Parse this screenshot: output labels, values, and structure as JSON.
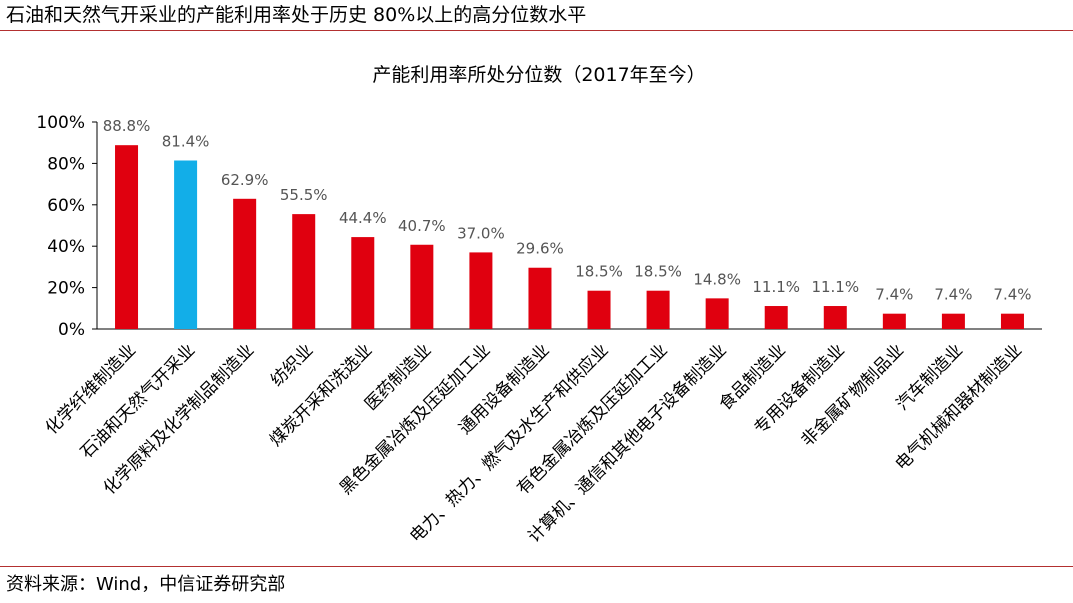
{
  "header": {
    "title": "石油和天然气开采业的产能利用率处于历史 80%以上的高分位数水平"
  },
  "footer": {
    "source": "资料来源：Wind，中信证券研究部"
  },
  "colors": {
    "default_bar": "#e0000f",
    "highlight_bar": "#12aee8",
    "rule": "#b33030",
    "axis": "#000000",
    "value_label": "#555555"
  },
  "chart_data": {
    "type": "bar",
    "title": "产能利用率所处分位数（2017年至今）",
    "xlabel": "",
    "ylabel": "",
    "ylim": [
      0,
      100
    ],
    "yticks": [
      "0%",
      "20%",
      "40%",
      "60%",
      "80%",
      "100%"
    ],
    "yticks_values": [
      0,
      20,
      40,
      60,
      80,
      100
    ],
    "grid": false,
    "legend": "none",
    "highlight_index": 1,
    "categories": [
      "化学纤维制造业",
      "石油和天然气开采业",
      "化学原料及化学制品制造业",
      "纺织业",
      "煤炭开采和洗选业",
      "医药制造业",
      "黑色金属冶炼及压延加工业",
      "通用设备制造业",
      "电力、热力、燃气及水生产和供应业",
      "有色金属冶炼及压延加工业",
      "计算机、通信和其他电子设备制造业",
      "食品制造业",
      "专用设备制造业",
      "非金属矿物制品业",
      "汽车制造业",
      "电气机械和器材制造业"
    ],
    "values": [
      88.8,
      81.4,
      62.9,
      55.5,
      44.4,
      40.7,
      37.0,
      29.6,
      18.5,
      18.5,
      14.8,
      11.1,
      11.1,
      7.4,
      7.4,
      7.4
    ],
    "value_labels": [
      "88.8%",
      "81.4%",
      "62.9%",
      "55.5%",
      "44.4%",
      "40.7%",
      "37.0%",
      "29.6%",
      "18.5%",
      "18.5%",
      "14.8%",
      "11.1%",
      "11.1%",
      "7.4%",
      "7.4%",
      "7.4%"
    ]
  }
}
